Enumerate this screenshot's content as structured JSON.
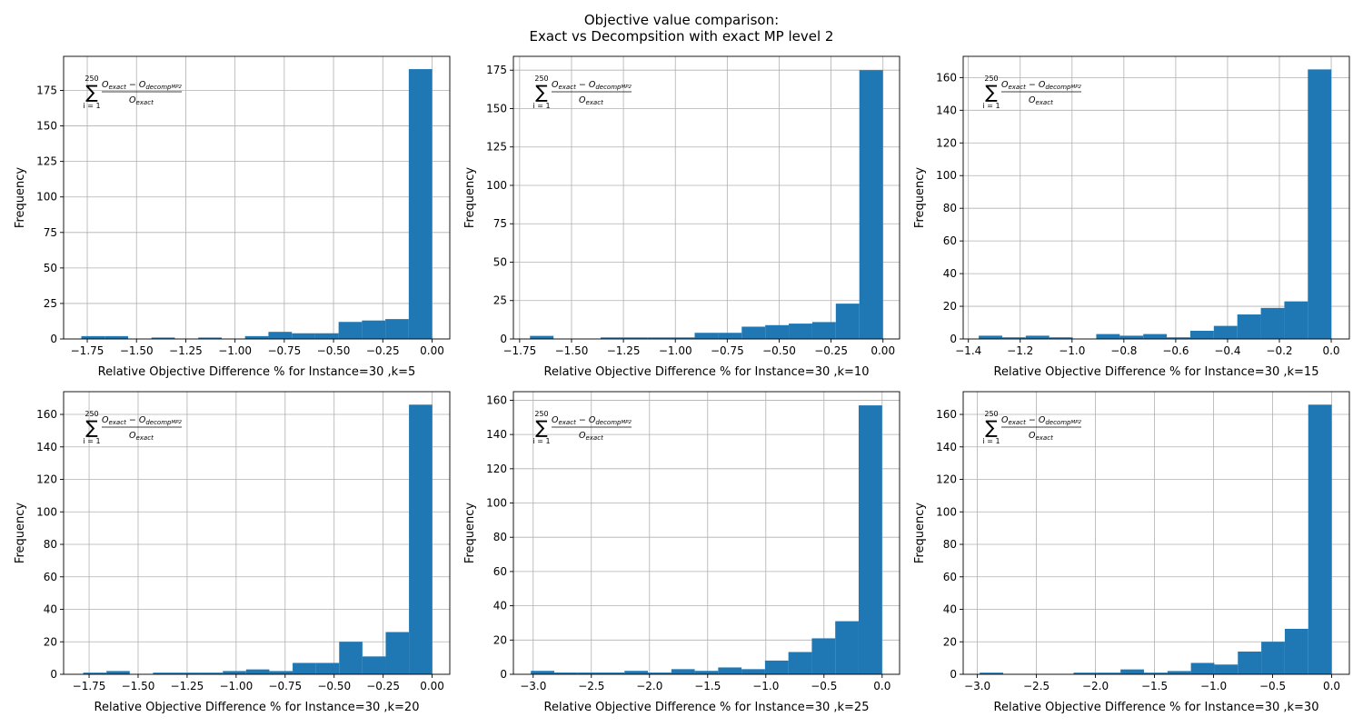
{
  "suptitle": {
    "line1": "Objective value comparison:",
    "line2": "Exact vs Decompsition with exact MP level 2"
  },
  "annotation": {
    "sum_upper": "250",
    "sum_lower": "i = 1",
    "sum_symbol": "∑",
    "numerator_main": "O",
    "numerator_sub1": "exact",
    "numerator_minus": " − ",
    "numerator_sub2": "decomp",
    "numerator_sub2b": "MP2",
    "denominator_main": "O",
    "denominator_sub": "exact"
  },
  "colors": {
    "bar": "#1f77b4",
    "grid": "#b0b0b0"
  },
  "chart_data": [
    {
      "type": "bar",
      "ylabel": "Frequency",
      "xlabel": "Relative Objective Difference % for Instance=30 ,k=5",
      "grid": true,
      "xlim": [
        -1.87,
        0.09
      ],
      "ylim": [
        0,
        199
      ],
      "xticks": [
        -1.75,
        -1.5,
        -1.25,
        -1.0,
        -0.75,
        -0.5,
        -0.25,
        0.0
      ],
      "xtick_labels": [
        "−1.75",
        "−1.50",
        "−1.25",
        "−1.00",
        "−0.75",
        "−0.50",
        "−0.25",
        "0.00"
      ],
      "yticks": [
        0,
        25,
        50,
        75,
        100,
        125,
        150,
        175
      ],
      "ytick_labels": [
        "0",
        "25",
        "50",
        "75",
        "100",
        "125",
        "150",
        "175"
      ],
      "bin_start": -1.78,
      "bin_width": 0.1187,
      "counts": [
        2,
        2,
        0,
        1,
        0,
        1,
        0,
        2,
        5,
        4,
        4,
        12,
        13,
        14,
        190
      ]
    },
    {
      "type": "bar",
      "ylabel": "Frequency",
      "xlabel": "Relative Objective Difference % for Instance=30 ,k=10",
      "grid": true,
      "xlim": [
        -1.78,
        0.08
      ],
      "ylim": [
        0,
        184
      ],
      "xticks": [
        -1.75,
        -1.5,
        -1.25,
        -1.0,
        -0.75,
        -0.5,
        -0.25,
        0.0
      ],
      "xtick_labels": [
        "−1.75",
        "−1.50",
        "−1.25",
        "−1.00",
        "−0.75",
        "−0.50",
        "−0.25",
        "0.00"
      ],
      "yticks": [
        0,
        25,
        50,
        75,
        100,
        125,
        150,
        175
      ],
      "ytick_labels": [
        "0",
        "25",
        "50",
        "75",
        "100",
        "125",
        "150",
        "175"
      ],
      "bin_start": -1.7,
      "bin_width": 0.1133,
      "counts": [
        2,
        0,
        0,
        1,
        1,
        1,
        1,
        4,
        4,
        8,
        9,
        10,
        11,
        23,
        175
      ]
    },
    {
      "type": "bar",
      "ylabel": "Frequency",
      "xlabel": "Relative Objective Difference % for Instance=30 ,k=15",
      "grid": true,
      "xlim": [
        -1.42,
        0.07
      ],
      "ylim": [
        0,
        173
      ],
      "xticks": [
        -1.4,
        -1.2,
        -1.0,
        -0.8,
        -0.6,
        -0.4,
        -0.2,
        0.0
      ],
      "xtick_labels": [
        "−1.4",
        "−1.2",
        "−1.0",
        "−0.8",
        "−0.6",
        "−0.4",
        "−0.2",
        "0.0"
      ],
      "yticks": [
        0,
        20,
        40,
        60,
        80,
        100,
        120,
        140,
        160
      ],
      "ytick_labels": [
        "0",
        "20",
        "40",
        "60",
        "80",
        "100",
        "120",
        "140",
        "160"
      ],
      "bin_start": -1.36,
      "bin_width": 0.0907,
      "counts": [
        2,
        1,
        2,
        1,
        0,
        3,
        2,
        3,
        1,
        5,
        8,
        15,
        19,
        23,
        165
      ]
    },
    {
      "type": "bar",
      "ylabel": "Frequency",
      "xlabel": "Relative Objective Difference % for Instance=30 ,k=20",
      "grid": true,
      "xlim": [
        -1.88,
        0.09
      ],
      "ylim": [
        0,
        174
      ],
      "xticks": [
        -1.75,
        -1.5,
        -1.25,
        -1.0,
        -0.75,
        -0.5,
        -0.25,
        0.0
      ],
      "xtick_labels": [
        "−1.75",
        "−1.50",
        "−1.25",
        "−1.00",
        "−0.75",
        "−0.50",
        "−0.25",
        "0.00"
      ],
      "yticks": [
        0,
        20,
        40,
        60,
        80,
        100,
        120,
        140,
        160
      ],
      "ytick_labels": [
        "0",
        "20",
        "40",
        "60",
        "80",
        "100",
        "120",
        "140",
        "160"
      ],
      "bin_start": -1.78,
      "bin_width": 0.1187,
      "counts": [
        1,
        2,
        0,
        1,
        1,
        1,
        2,
        3,
        2,
        7,
        7,
        20,
        11,
        26,
        166
      ]
    },
    {
      "type": "bar",
      "ylabel": "Frequency",
      "xlabel": "Relative Objective Difference % for Instance=30 ,k=25",
      "grid": true,
      "xlim": [
        -3.17,
        0.15
      ],
      "ylim": [
        0,
        165
      ],
      "xticks": [
        -3.0,
        -2.5,
        -2.0,
        -1.5,
        -1.0,
        -0.5,
        0.0
      ],
      "xtick_labels": [
        "−3.0",
        "−2.5",
        "−2.0",
        "−1.5",
        "−1.0",
        "−0.5",
        "0.0"
      ],
      "yticks": [
        0,
        20,
        40,
        60,
        80,
        100,
        120,
        140,
        160
      ],
      "ytick_labels": [
        "0",
        "20",
        "40",
        "60",
        "80",
        "100",
        "120",
        "140",
        "160"
      ],
      "bin_start": -3.02,
      "bin_width": 0.2013,
      "counts": [
        2,
        1,
        1,
        1,
        2,
        1,
        3,
        2,
        4,
        3,
        8,
        13,
        21,
        31,
        157
      ]
    },
    {
      "type": "bar",
      "ylabel": "Frequency",
      "xlabel": "Relative Objective Difference % for Instance=30 ,k=30",
      "grid": true,
      "xlim": [
        -3.12,
        0.15
      ],
      "ylim": [
        0,
        174
      ],
      "xticks": [
        -3.0,
        -2.5,
        -2.0,
        -1.5,
        -1.0,
        -0.5,
        0.0
      ],
      "xtick_labels": [
        "−3.0",
        "−2.5",
        "−2.0",
        "−1.5",
        "−1.0",
        "−0.5",
        "0.0"
      ],
      "yticks": [
        0,
        20,
        40,
        60,
        80,
        100,
        120,
        140,
        160
      ],
      "ytick_labels": [
        "0",
        "20",
        "40",
        "60",
        "80",
        "100",
        "120",
        "140",
        "160"
      ],
      "bin_start": -2.98,
      "bin_width": 0.1987,
      "counts": [
        1,
        0,
        0,
        0,
        1,
        1,
        3,
        1,
        2,
        7,
        6,
        14,
        20,
        28,
        166
      ]
    }
  ]
}
